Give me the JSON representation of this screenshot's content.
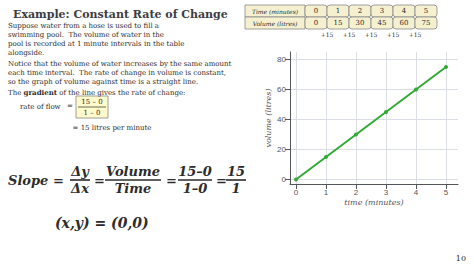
{
  "chart_data": {
    "type": "line",
    "title": "Example: Constant Rate of Change",
    "x": [
      0,
      1,
      2,
      3,
      4,
      5
    ],
    "values": [
      0,
      15,
      30,
      45,
      60,
      75
    ],
    "color": "#33aa33",
    "marker": "circle",
    "xlim": [
      -0.2,
      5.4
    ],
    "ylim": [
      -3,
      85
    ],
    "xticks": [
      0,
      1,
      2,
      3,
      4,
      5
    ],
    "yticks": [
      0,
      20,
      40,
      60,
      80
    ],
    "xlabel": "time (minutes)",
    "ylabel": "volume (litres)",
    "grid": true,
    "annotations": [
      "Suppose water from a hose is used to fill a",
      "swimming pool.  The volume of water in the",
      "pool is recorded at 1 minute intervals in the table",
      "alongside.",
      "Notice that the volume of water increases by the same amount",
      "each time interval.  The rate of change in volume is constant,",
      "so the graph of volume against time is a straight line.",
      "The ",
      "gradient",
      " of the line gives the rate of change:",
      "rate of flow",
      "=",
      "15 – 0",
      "1 – 0",
      "= 15 litres per minute",
      "Time (minutes)",
      "Volume (litres)",
      "+15",
      "+15",
      "+15",
      "+15",
      "+15",
      "Slope =",
      "Δy",
      "Δx",
      "=",
      "Volume",
      "Time",
      "=",
      "15–0",
      "1–0",
      "=",
      "15",
      "1",
      "(x,y) = (0,0)",
      "10"
    ]
  }
}
